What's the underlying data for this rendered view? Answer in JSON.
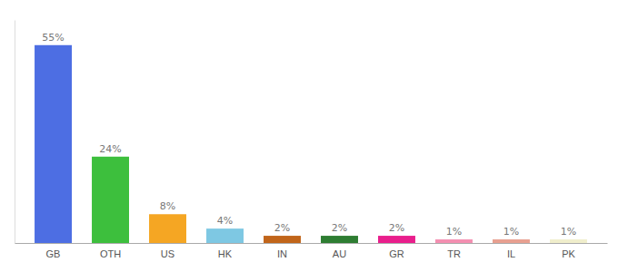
{
  "chart_data": {
    "type": "bar",
    "categories": [
      "GB",
      "OTH",
      "US",
      "HK",
      "IN",
      "AU",
      "GR",
      "TR",
      "IL",
      "PK"
    ],
    "values": [
      55,
      24,
      8,
      4,
      2,
      2,
      2,
      1,
      1,
      1
    ],
    "value_labels": [
      "55%",
      "24%",
      "8%",
      "4%",
      "2%",
      "2%",
      "2%",
      "1%",
      "1%",
      "1%"
    ],
    "colors": [
      "#4d6ee3",
      "#3dbf3d",
      "#f5a623",
      "#7ec8e3",
      "#c1651a",
      "#2e7d32",
      "#e91e8c",
      "#f48fb1",
      "#e8a090",
      "#f0eecc"
    ],
    "ylim": [
      0,
      62
    ],
    "data_labels": true,
    "tick_labels": "x",
    "grid": false
  }
}
